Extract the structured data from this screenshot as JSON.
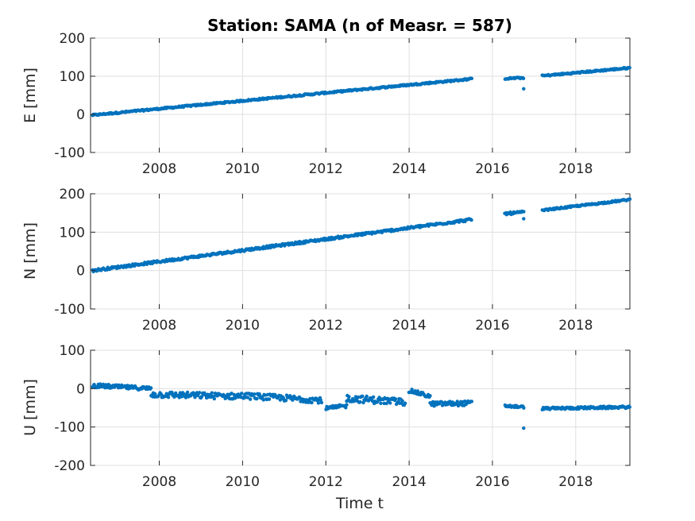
{
  "chart_data": [
    {
      "type": "scatter",
      "title": "Station: SAMA (n of Measr. = 587)",
      "xlabel": "",
      "ylabel": "E [mm]",
      "xlim": [
        2006.35,
        2019.3
      ],
      "ylim": [
        -100,
        200
      ],
      "xticks": [
        2008,
        2010,
        2012,
        2014,
        2016,
        2018
      ],
      "yticks": [
        -100,
        0,
        100,
        200
      ],
      "grid": true,
      "marker_color": "#0072bd",
      "segments": [
        {
          "x_start": 2006.4,
          "x_end": 2015.5,
          "y_start": -2,
          "y_end": 93,
          "noise": 2
        },
        {
          "x_start": 2016.3,
          "x_end": 2016.75,
          "y_start": 94,
          "y_end": 96,
          "noise": 2
        },
        {
          "x_start": 2017.2,
          "x_end": 2019.3,
          "y_start": 101,
          "y_end": 122,
          "noise": 2
        }
      ],
      "outliers": [
        {
          "x": 2016.75,
          "y": 67
        }
      ]
    },
    {
      "type": "scatter",
      "title": "",
      "xlabel": "",
      "ylabel": "N [mm]",
      "xlim": [
        2006.35,
        2019.3
      ],
      "ylim": [
        -100,
        200
      ],
      "xticks": [
        2008,
        2010,
        2012,
        2014,
        2016,
        2018
      ],
      "yticks": [
        -100,
        0,
        100,
        200
      ],
      "grid": true,
      "marker_color": "#0072bd",
      "segments": [
        {
          "x_start": 2006.4,
          "x_end": 2015.5,
          "y_start": 0,
          "y_end": 133,
          "noise": 3
        },
        {
          "x_start": 2016.3,
          "x_end": 2016.75,
          "y_start": 148,
          "y_end": 152,
          "noise": 3
        },
        {
          "x_start": 2017.2,
          "x_end": 2019.3,
          "y_start": 157,
          "y_end": 185,
          "noise": 2
        }
      ],
      "outliers": [
        {
          "x": 2016.75,
          "y": 135
        }
      ]
    },
    {
      "type": "scatter",
      "title": "",
      "xlabel": "Time t",
      "ylabel": "U [mm]",
      "xlim": [
        2006.35,
        2019.3
      ],
      "ylim": [
        -200,
        100
      ],
      "xticks": [
        2008,
        2010,
        2012,
        2014,
        2016,
        2018
      ],
      "yticks": [
        -200,
        -100,
        0,
        100
      ],
      "grid": true,
      "marker_color": "#0072bd",
      "segments": [
        {
          "x_start": 2006.4,
          "x_end": 2007.8,
          "y_start": 8,
          "y_end": 0,
          "noise": 5
        },
        {
          "x_start": 2007.8,
          "x_end": 2009.9,
          "y_start": -15,
          "y_end": -20,
          "noise": 8
        },
        {
          "x_start": 2009.9,
          "x_end": 2011.9,
          "y_start": -18,
          "y_end": -30,
          "noise": 8
        },
        {
          "x_start": 2012.0,
          "x_end": 2012.5,
          "y_start": -52,
          "y_end": -45,
          "noise": 5
        },
        {
          "x_start": 2012.5,
          "x_end": 2013.9,
          "y_start": -25,
          "y_end": -35,
          "noise": 9
        },
        {
          "x_start": 2014.0,
          "x_end": 2014.5,
          "y_start": -5,
          "y_end": -20,
          "noise": 5
        },
        {
          "x_start": 2014.5,
          "x_end": 2015.5,
          "y_start": -40,
          "y_end": -38,
          "noise": 6
        },
        {
          "x_start": 2016.3,
          "x_end": 2016.75,
          "y_start": -45,
          "y_end": -48,
          "noise": 3
        },
        {
          "x_start": 2017.2,
          "x_end": 2019.3,
          "y_start": -52,
          "y_end": -48,
          "noise": 3
        }
      ],
      "outliers": [
        {
          "x": 2016.75,
          "y": -103
        }
      ]
    }
  ]
}
